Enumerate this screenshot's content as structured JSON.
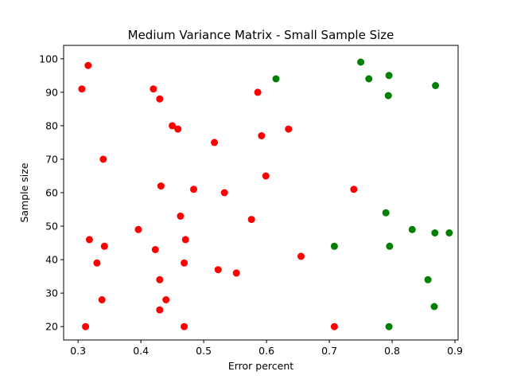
{
  "chart_data": {
    "type": "scatter",
    "title": "Medium Variance Matrix - Small Sample Size",
    "xlabel": "Error percent",
    "ylabel": "Sample size",
    "xlim": [
      0.277,
      0.905
    ],
    "ylim": [
      16,
      104
    ],
    "x_ticks": [
      "0.3",
      "0.4",
      "0.5",
      "0.6",
      "0.7",
      "0.8",
      "0.9"
    ],
    "y_ticks": [
      "20",
      "30",
      "40",
      "50",
      "60",
      "70",
      "80",
      "90",
      "100"
    ],
    "grid": false,
    "series": [
      {
        "color": "#ff0000",
        "points": [
          [
            0.316,
            98
          ],
          [
            0.306,
            91
          ],
          [
            0.42,
            91
          ],
          [
            0.43,
            88
          ],
          [
            0.586,
            90
          ],
          [
            0.45,
            80
          ],
          [
            0.459,
            79
          ],
          [
            0.635,
            79
          ],
          [
            0.592,
            77
          ],
          [
            0.517,
            75
          ],
          [
            0.34,
            70
          ],
          [
            0.599,
            65
          ],
          [
            0.432,
            62
          ],
          [
            0.484,
            61
          ],
          [
            0.533,
            60
          ],
          [
            0.739,
            61
          ],
          [
            0.463,
            53
          ],
          [
            0.576,
            52
          ],
          [
            0.396,
            49
          ],
          [
            0.318,
            46
          ],
          [
            0.471,
            46
          ],
          [
            0.342,
            44
          ],
          [
            0.423,
            43
          ],
          [
            0.655,
            41
          ],
          [
            0.33,
            39
          ],
          [
            0.469,
            39
          ],
          [
            0.523,
            37
          ],
          [
            0.552,
            36
          ],
          [
            0.43,
            34
          ],
          [
            0.338,
            28
          ],
          [
            0.44,
            28
          ],
          [
            0.43,
            25
          ],
          [
            0.312,
            20
          ],
          [
            0.469,
            20
          ],
          [
            0.708,
            20
          ]
        ]
      },
      {
        "color": "#008000",
        "points": [
          [
            0.75,
            99
          ],
          [
            0.615,
            94
          ],
          [
            0.763,
            94
          ],
          [
            0.795,
            95
          ],
          [
            0.869,
            92
          ],
          [
            0.794,
            89
          ],
          [
            0.79,
            54
          ],
          [
            0.832,
            49
          ],
          [
            0.868,
            48
          ],
          [
            0.891,
            48
          ],
          [
            0.708,
            44
          ],
          [
            0.796,
            44
          ],
          [
            0.857,
            34
          ],
          [
            0.867,
            26
          ],
          [
            0.795,
            20
          ]
        ]
      }
    ]
  }
}
